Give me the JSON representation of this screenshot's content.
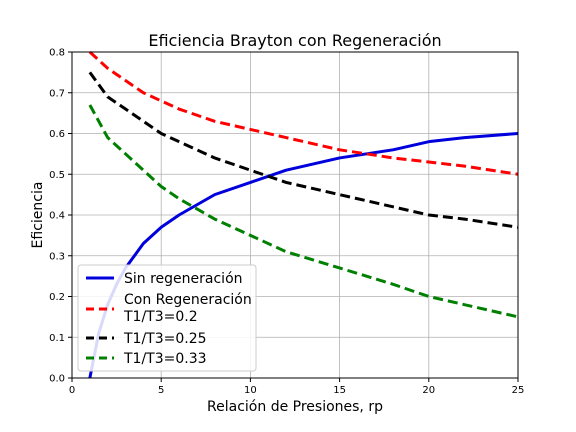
{
  "chart_data": {
    "type": "line",
    "title": "Eficiencia Brayton con Regeneración",
    "xlabel": "Relación de Presiones, rp",
    "ylabel": "Eficiencia",
    "xlim": [
      0,
      25
    ],
    "ylim": [
      0.0,
      0.8
    ],
    "xticks": [
      0,
      5,
      10,
      15,
      20,
      25
    ],
    "yticks": [
      0.0,
      0.1,
      0.2,
      0.3,
      0.4,
      0.5,
      0.6,
      0.7,
      0.8
    ],
    "grid": true,
    "legend_position": "lower-left",
    "series": [
      {
        "name": "Sin regeneración",
        "color": "#0000dd",
        "style": "solid",
        "x": [
          1,
          1.5,
          2,
          2.5,
          3,
          4,
          5,
          6,
          8,
          10,
          12,
          15,
          18,
          20,
          22,
          25
        ],
        "y": [
          0.0,
          0.11,
          0.18,
          0.23,
          0.27,
          0.33,
          0.37,
          0.4,
          0.45,
          0.48,
          0.51,
          0.54,
          0.56,
          0.58,
          0.59,
          0.6
        ]
      },
      {
        "name": "Con Regeneración T1/T3=0.2",
        "color": "#ff0000",
        "style": "dashed",
        "x": [
          1,
          2,
          3,
          4,
          5,
          6,
          8,
          10,
          12,
          15,
          18,
          20,
          22,
          25
        ],
        "y": [
          0.8,
          0.76,
          0.73,
          0.7,
          0.68,
          0.66,
          0.63,
          0.61,
          0.59,
          0.56,
          0.54,
          0.53,
          0.52,
          0.5
        ]
      },
      {
        "name": "T1/T3=0.25",
        "color": "#000000",
        "style": "dashed",
        "x": [
          1,
          2,
          3,
          4,
          5,
          6,
          8,
          10,
          12,
          15,
          18,
          20,
          22,
          25
        ],
        "y": [
          0.75,
          0.69,
          0.66,
          0.63,
          0.6,
          0.58,
          0.54,
          0.51,
          0.48,
          0.45,
          0.42,
          0.4,
          0.39,
          0.37
        ]
      },
      {
        "name": "T1/T3=0.33",
        "color": "#008000",
        "style": "dashed",
        "x": [
          1,
          2,
          3,
          4,
          5,
          6,
          8,
          10,
          12,
          15,
          18,
          20,
          22,
          25
        ],
        "y": [
          0.67,
          0.59,
          0.55,
          0.51,
          0.47,
          0.44,
          0.39,
          0.35,
          0.31,
          0.27,
          0.23,
          0.2,
          0.18,
          0.15
        ]
      }
    ],
    "legend_labels": [
      "Sin regeneración",
      "Con Regeneración",
      "T1/T3=0.2",
      "T1/T3=0.25",
      "T1/T3=0.33"
    ]
  }
}
